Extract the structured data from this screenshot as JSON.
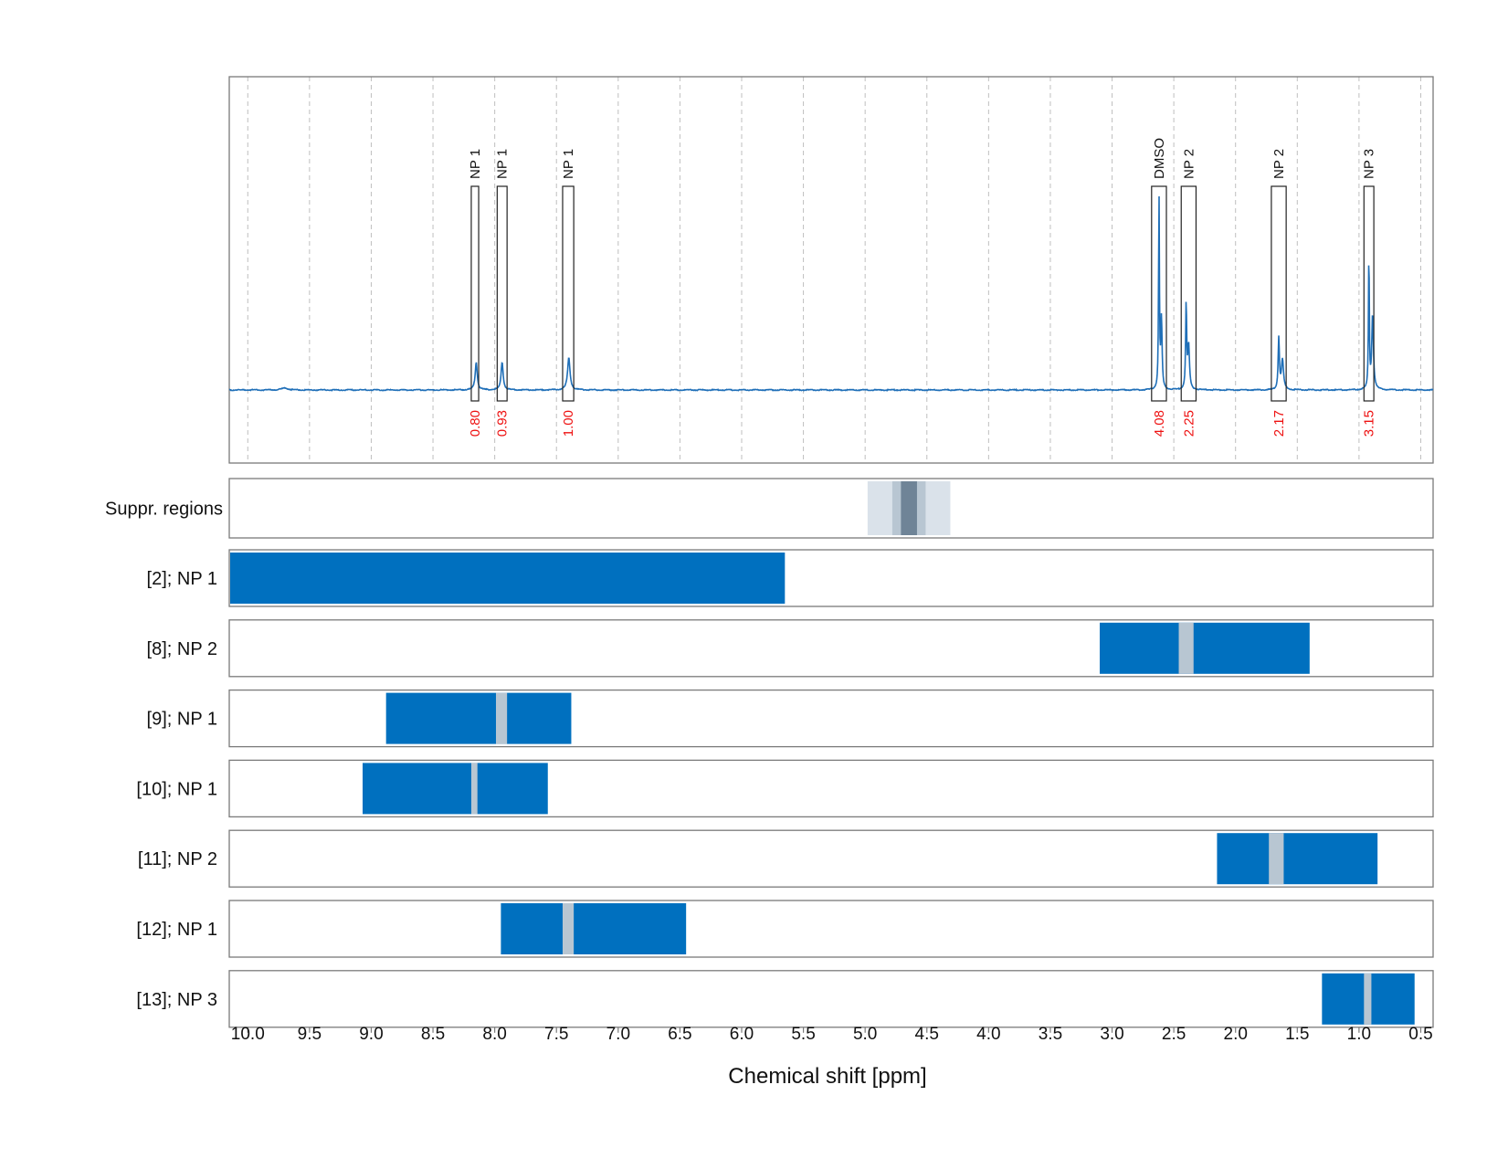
{
  "chart_data": {
    "type": "line",
    "xlabel": "Chemical shift [ppm]",
    "xlim": [
      10.15,
      0.4
    ],
    "x_reversed": true,
    "x_ticks": [
      "10.0",
      "9.5",
      "9.0",
      "8.5",
      "8.0",
      "7.5",
      "7.0",
      "6.5",
      "6.0",
      "5.5",
      "5.0",
      "4.5",
      "4.0",
      "3.5",
      "3.0",
      "2.5",
      "2.0",
      "1.5",
      "1.0",
      "0.5"
    ],
    "grid": "vertical dashed",
    "spectrum": {
      "color": "#1f6fb8",
      "baseline_peaks": [
        {
          "ppm": 9.7,
          "height": 0.01,
          "width": 0.03
        }
      ],
      "peaks": [
        {
          "ppm": 8.15,
          "height": 0.14,
          "width": 0.01
        },
        {
          "ppm": 7.94,
          "height": 0.14,
          "width": 0.01
        },
        {
          "ppm": 7.4,
          "height": 0.16,
          "width": 0.012
        },
        {
          "ppm": 2.62,
          "height": 0.97,
          "width": 0.004
        },
        {
          "ppm": 2.6,
          "height": 0.35,
          "width": 0.006
        },
        {
          "ppm": 2.4,
          "height": 0.43,
          "width": 0.005
        },
        {
          "ppm": 2.38,
          "height": 0.22,
          "width": 0.008
        },
        {
          "ppm": 1.65,
          "height": 0.26,
          "width": 0.006
        },
        {
          "ppm": 1.62,
          "height": 0.15,
          "width": 0.01
        },
        {
          "ppm": 0.92,
          "height": 0.69,
          "width": 0.004
        },
        {
          "ppm": 0.89,
          "height": 0.38,
          "width": 0.008
        }
      ]
    },
    "peak_boxes": [
      {
        "label": "NP 1",
        "integral": "0.80",
        "ppm_start": 8.19,
        "ppm_end": 8.13
      },
      {
        "label": "NP 1",
        "integral": "0.93",
        "ppm_start": 7.98,
        "ppm_end": 7.9
      },
      {
        "label": "NP 1",
        "integral": "1.00",
        "ppm_start": 7.45,
        "ppm_end": 7.36
      },
      {
        "label": "DMSO",
        "integral": "4.08",
        "ppm_start": 2.68,
        "ppm_end": 2.56
      },
      {
        "label": "NP 2",
        "integral": "2.25",
        "ppm_start": 2.44,
        "ppm_end": 2.32
      },
      {
        "label": "NP 2",
        "integral": "2.17",
        "ppm_start": 1.71,
        "ppm_end": 1.59
      },
      {
        "label": "NP 3",
        "integral": "3.15",
        "ppm_start": 0.96,
        "ppm_end": 0.88
      }
    ],
    "suppression": {
      "label": "Suppr. regions",
      "regions": [
        {
          "from": 4.98,
          "to": 4.31,
          "color": "#dae2ea"
        },
        {
          "from": 4.78,
          "to": 4.51,
          "color": "#b8c6d2"
        },
        {
          "from": 4.71,
          "to": 4.58,
          "color": "#6f8497"
        }
      ]
    },
    "tracks": [
      {
        "label": "[2]; NP 1",
        "bar": [
          10.15,
          5.65
        ],
        "gap": null
      },
      {
        "label": "[8]; NP 2",
        "bar": [
          3.1,
          1.4
        ],
        "gap": [
          2.46,
          2.34
        ]
      },
      {
        "label": "[9]; NP 1",
        "bar": [
          8.88,
          7.38
        ],
        "gap": [
          7.99,
          7.9
        ]
      },
      {
        "label": "[10]; NP 1",
        "bar": [
          9.07,
          7.57
        ],
        "gap": [
          8.19,
          8.14
        ]
      },
      {
        "label": "[11]; NP 2",
        "bar": [
          2.15,
          0.85
        ],
        "gap": [
          1.73,
          1.61
        ]
      },
      {
        "label": "[12]; NP 1",
        "bar": [
          7.95,
          6.45
        ],
        "gap": [
          7.45,
          7.36
        ]
      },
      {
        "label": "[13]; NP 3",
        "bar": [
          1.3,
          0.55
        ],
        "gap": [
          0.96,
          0.9
        ]
      }
    ],
    "colors": {
      "bar": "#0070bf",
      "gap": "#b8c6d2",
      "integral_text": "#ee1111",
      "frame": "#7a7a7a",
      "grid": "#bfbfbf"
    }
  }
}
